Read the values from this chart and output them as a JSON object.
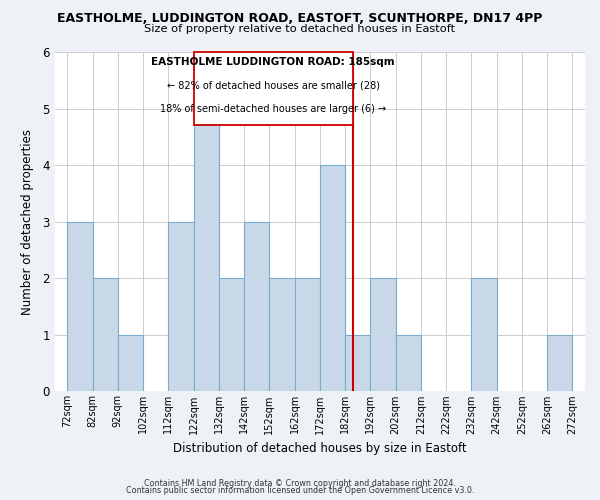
{
  "title": "EASTHOLME, LUDDINGTON ROAD, EASTOFT, SCUNTHORPE, DN17 4PP",
  "subtitle": "Size of property relative to detached houses in Eastoft",
  "xlabel": "Distribution of detached houses by size in Eastoft",
  "ylabel": "Number of detached properties",
  "bins": [
    72,
    82,
    92,
    102,
    112,
    122,
    132,
    142,
    152,
    162,
    172,
    182,
    192,
    202,
    212,
    222,
    232,
    242,
    252,
    262,
    272
  ],
  "counts": [
    3,
    2,
    1,
    0,
    3,
    5,
    2,
    3,
    2,
    2,
    4,
    1,
    2,
    1,
    0,
    0,
    2,
    0,
    0,
    1
  ],
  "bar_color": "#c8d8e8",
  "bar_edge_color": "#7aabcc",
  "reference_line_x": 185,
  "reference_line_color": "#cc0000",
  "annotation_title": "EASTHOLME LUDDINGTON ROAD: 185sqm",
  "annotation_line1": "← 82% of detached houses are smaller (28)",
  "annotation_line2": "18% of semi-detached houses are larger (6) →",
  "ylim": [
    0,
    6
  ],
  "yticks": [
    0,
    1,
    2,
    3,
    4,
    5,
    6
  ],
  "tick_labels": [
    "72sqm",
    "82sqm",
    "92sqm",
    "102sqm",
    "112sqm",
    "122sqm",
    "132sqm",
    "142sqm",
    "152sqm",
    "162sqm",
    "172sqm",
    "182sqm",
    "192sqm",
    "202sqm",
    "212sqm",
    "222sqm",
    "232sqm",
    "242sqm",
    "252sqm",
    "262sqm",
    "272sqm"
  ],
  "footer1": "Contains HM Land Registry data © Crown copyright and database right 2024.",
  "footer2": "Contains public sector information licensed under the Open Government Licence v3.0.",
  "background_color": "#eef2f7",
  "plot_background_color": "#ffffff",
  "grid_color": "#cccccc"
}
